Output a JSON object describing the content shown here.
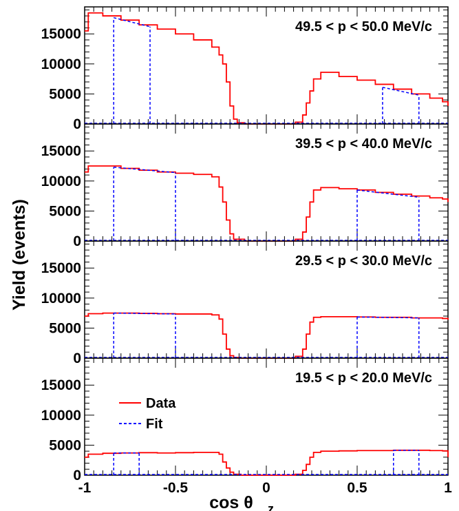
{
  "chart_data": {
    "type": "line",
    "ylabel": "Yield (events)",
    "xlabel_main": "cos θ",
    "xlabel_sub": "z",
    "xlim": [
      -1,
      1
    ],
    "ylim": [
      0,
      19500
    ],
    "x_ticks": [
      -1,
      -0.5,
      0,
      0.5,
      1
    ],
    "x_tick_labels": [
      "-1",
      "-0.5",
      "0",
      "0.5",
      "1"
    ],
    "y_ticks": [
      0,
      5000,
      10000,
      15000
    ],
    "y_tick_labels": [
      "0",
      "5000",
      "10000",
      "15000"
    ],
    "grid": false,
    "legend": {
      "location": "inside-bottom-panel",
      "entries": [
        {
          "name": "Data",
          "style": "solid",
          "color": "#ff0000"
        },
        {
          "name": "Fit",
          "style": "dashed",
          "color": "#0000ff"
        }
      ]
    },
    "panels": [
      {
        "label": "49.5 < p < 50.0 MeV/c",
        "data_points": [
          [
            -1.0,
            15500
          ],
          [
            -0.98,
            18500
          ],
          [
            -0.9,
            18000
          ],
          [
            -0.8,
            17300
          ],
          [
            -0.7,
            16500
          ],
          [
            -0.6,
            15800
          ],
          [
            -0.5,
            15000
          ],
          [
            -0.4,
            14000
          ],
          [
            -0.3,
            12800
          ],
          [
            -0.26,
            11500
          ],
          [
            -0.24,
            10000
          ],
          [
            -0.22,
            7000
          ],
          [
            -0.2,
            3000
          ],
          [
            -0.18,
            800
          ],
          [
            -0.16,
            200
          ],
          [
            -0.12,
            0
          ],
          [
            0.12,
            0
          ],
          [
            0.16,
            300
          ],
          [
            0.2,
            1500
          ],
          [
            0.22,
            3500
          ],
          [
            0.24,
            5500
          ],
          [
            0.26,
            7500
          ],
          [
            0.3,
            8600
          ],
          [
            0.4,
            7900
          ],
          [
            0.5,
            7300
          ],
          [
            0.6,
            6600
          ],
          [
            0.7,
            5800
          ],
          [
            0.8,
            5000
          ],
          [
            0.9,
            4300
          ],
          [
            0.97,
            3700
          ],
          [
            1.0,
            3000
          ]
        ],
        "fit_ranges": [
          [
            -0.84,
            -0.64
          ],
          [
            0.64,
            0.84
          ]
        ],
        "fit_values": [
          [
            17700,
            16200
          ],
          [
            6100,
            4800
          ]
        ]
      },
      {
        "label": "39.5 < p < 40.0 MeV/c",
        "data_points": [
          [
            -1.0,
            11500
          ],
          [
            -0.98,
            12500
          ],
          [
            -0.9,
            12500
          ],
          [
            -0.8,
            12100
          ],
          [
            -0.7,
            11800
          ],
          [
            -0.6,
            11500
          ],
          [
            -0.5,
            11300
          ],
          [
            -0.4,
            11100
          ],
          [
            -0.3,
            10700
          ],
          [
            -0.26,
            9000
          ],
          [
            -0.24,
            6500
          ],
          [
            -0.22,
            3500
          ],
          [
            -0.2,
            1200
          ],
          [
            -0.18,
            300
          ],
          [
            -0.12,
            0
          ],
          [
            0.12,
            0
          ],
          [
            0.16,
            300
          ],
          [
            0.2,
            1500
          ],
          [
            0.22,
            4000
          ],
          [
            0.24,
            6500
          ],
          [
            0.26,
            8500
          ],
          [
            0.3,
            8900
          ],
          [
            0.4,
            8700
          ],
          [
            0.5,
            8500
          ],
          [
            0.6,
            8100
          ],
          [
            0.7,
            7800
          ],
          [
            0.8,
            7500
          ],
          [
            0.9,
            7200
          ],
          [
            0.97,
            7000
          ],
          [
            1.0,
            6500
          ]
        ],
        "fit_ranges": [
          [
            -0.84,
            -0.5
          ],
          [
            0.5,
            0.84
          ]
        ],
        "fit_values": [
          [
            12300,
            11400
          ],
          [
            8500,
            7300
          ]
        ]
      },
      {
        "label": "29.5 < p < 30.0 MeV/c",
        "data_points": [
          [
            -1.0,
            7000
          ],
          [
            -0.98,
            7400
          ],
          [
            -0.9,
            7500
          ],
          [
            -0.8,
            7500
          ],
          [
            -0.7,
            7450
          ],
          [
            -0.6,
            7400
          ],
          [
            -0.5,
            7350
          ],
          [
            -0.4,
            7350
          ],
          [
            -0.3,
            7200
          ],
          [
            -0.26,
            6500
          ],
          [
            -0.24,
            4000
          ],
          [
            -0.22,
            1500
          ],
          [
            -0.2,
            400
          ],
          [
            -0.18,
            100
          ],
          [
            -0.14,
            0
          ],
          [
            0.14,
            0
          ],
          [
            0.16,
            300
          ],
          [
            0.2,
            1500
          ],
          [
            0.22,
            4000
          ],
          [
            0.24,
            6000
          ],
          [
            0.26,
            6800
          ],
          [
            0.3,
            6900
          ],
          [
            0.4,
            6900
          ],
          [
            0.5,
            6850
          ],
          [
            0.6,
            6800
          ],
          [
            0.7,
            6800
          ],
          [
            0.8,
            6700
          ],
          [
            0.9,
            6700
          ],
          [
            0.97,
            6600
          ],
          [
            1.0,
            6400
          ]
        ],
        "fit_ranges": [
          [
            -0.84,
            -0.5
          ],
          [
            0.5,
            0.84
          ]
        ],
        "fit_values": [
          [
            7500,
            7350
          ],
          [
            6850,
            6700
          ]
        ]
      },
      {
        "label": "19.5 < p < 20.0 MeV/c",
        "data_points": [
          [
            -1.0,
            3000
          ],
          [
            -0.98,
            3500
          ],
          [
            -0.9,
            3650
          ],
          [
            -0.8,
            3700
          ],
          [
            -0.7,
            3750
          ],
          [
            -0.6,
            3700
          ],
          [
            -0.5,
            3750
          ],
          [
            -0.4,
            3800
          ],
          [
            -0.3,
            3800
          ],
          [
            -0.26,
            3500
          ],
          [
            -0.24,
            2200
          ],
          [
            -0.22,
            1200
          ],
          [
            -0.2,
            500
          ],
          [
            -0.18,
            150
          ],
          [
            -0.14,
            0
          ],
          [
            0.14,
            0
          ],
          [
            0.16,
            150
          ],
          [
            0.2,
            800
          ],
          [
            0.22,
            1800
          ],
          [
            0.24,
            3000
          ],
          [
            0.26,
            3800
          ],
          [
            0.3,
            4000
          ],
          [
            0.4,
            4050
          ],
          [
            0.5,
            4100
          ],
          [
            0.6,
            4100
          ],
          [
            0.7,
            4150
          ],
          [
            0.8,
            4150
          ],
          [
            0.9,
            4100
          ],
          [
            0.97,
            4050
          ],
          [
            1.0,
            3000
          ]
        ],
        "fit_ranges": [
          [
            -0.84,
            -0.7
          ],
          [
            0.7,
            0.84
          ]
        ],
        "fit_values": [
          [
            3700,
            3700
          ],
          [
            4150,
            4150
          ]
        ]
      }
    ]
  }
}
